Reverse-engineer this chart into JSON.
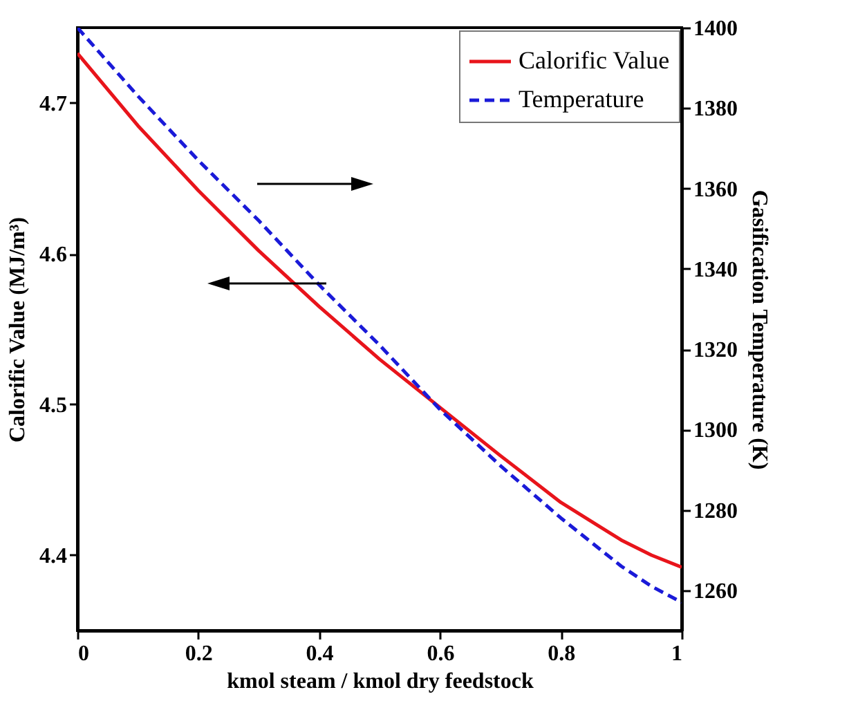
{
  "chart_data": {
    "type": "line",
    "xlabel": "kmol steam / kmol dry feedstock",
    "ylabel": "Calorific Value (MJ/m³)",
    "y2label": "Gasification Temperature (K)",
    "x": [
      0,
      0.1,
      0.2,
      0.3,
      0.4,
      0.5,
      0.6,
      0.7,
      0.8,
      0.9,
      0.95,
      1
    ],
    "series": [
      {
        "name": "Calorific Value",
        "color": "#e8141b",
        "line_style": "solid",
        "values": [
          4.733,
          4.685,
          4.642,
          4.602,
          4.565,
          4.53,
          4.498,
          4.466,
          4.435,
          4.41,
          4.4,
          4.392
        ]
      },
      {
        "name": "Temperature",
        "color": "#1a1ad8",
        "line_style": "dashed",
        "axis": "y2",
        "values": [
          1400,
          1383,
          1367,
          1352,
          1336,
          1321,
          1305,
          1291,
          1278,
          1266,
          1261,
          1257
        ]
      }
    ],
    "xlim": [
      0,
      1
    ],
    "xticks": [
      0,
      0.2,
      0.4,
      0.6,
      0.8,
      1
    ],
    "ylim": [
      4.35,
      4.75
    ],
    "yticks": [
      4.4,
      4.5,
      4.6,
      4.7
    ],
    "y2lim": [
      1250,
      1400
    ],
    "y2ticks": [
      1260,
      1280,
      1300,
      1320,
      1340,
      1360,
      1380,
      1400
    ],
    "legend": "top right"
  }
}
